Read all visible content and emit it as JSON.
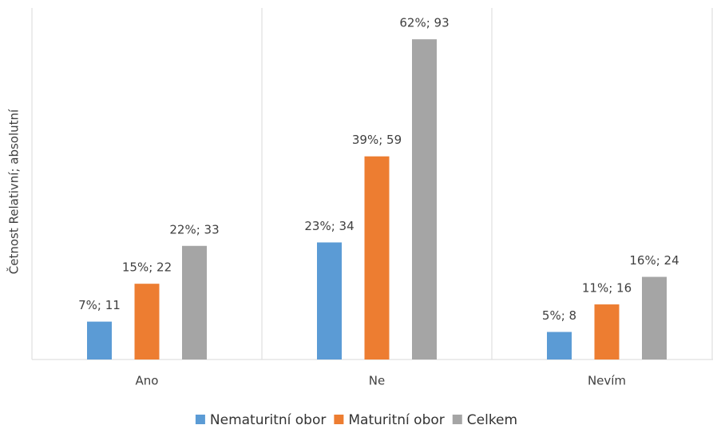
{
  "chart_data": {
    "type": "bar",
    "y_label": "Četnost Relativní; absolutní",
    "categories": [
      "Ano",
      "Ne",
      "Nevím"
    ],
    "series": [
      {
        "name": "Nematuritní obor",
        "color": "#5b9bd5",
        "values": [
          11,
          34,
          8
        ],
        "value_labels": [
          "7%; 11",
          "23%; 34",
          "5%; 8"
        ]
      },
      {
        "name": "Maturitní obor",
        "color": "#ed7d31",
        "values": [
          22,
          59,
          16
        ],
        "value_labels": [
          "15%; 22",
          "39%; 59",
          "11%; 16"
        ]
      },
      {
        "name": "Celkem",
        "color": "#a5a5a5",
        "values": [
          33,
          93,
          24
        ],
        "value_labels": [
          "22%; 33",
          "62%; 93",
          "16%; 24"
        ]
      }
    ],
    "ylim": [
      0,
      100
    ],
    "legend": "bottom"
  }
}
